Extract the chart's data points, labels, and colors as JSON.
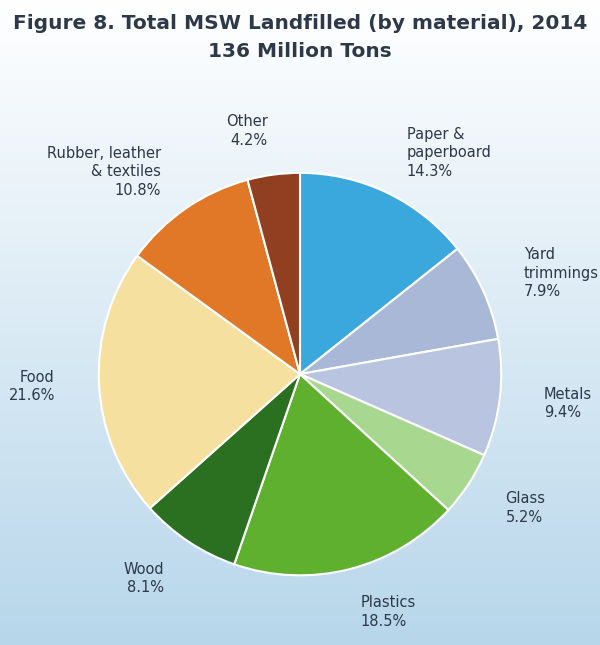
{
  "title_line1": "Figure 8. Total MSW Landfilled (by material), 2014",
  "title_line2": "136 Million Tons",
  "labels": [
    "Paper &\npaperboard\n14.3%",
    "Yard\ntrimmings\n7.9%",
    "Metals\n9.4%",
    "Glass\n5.2%",
    "Plastics\n18.5%",
    "Wood\n8.1%",
    "Food\n21.6%",
    "Rubber, leather\n& textiles\n10.8%",
    "Other\n4.2%"
  ],
  "values": [
    14.3,
    7.9,
    9.4,
    5.2,
    18.5,
    8.1,
    21.6,
    10.8,
    4.2
  ],
  "colors": [
    "#3AA8DC",
    "#AAB8D8",
    "#B8C4E0",
    "#A8D890",
    "#60B030",
    "#2A7020",
    "#F5E0A0",
    "#E07828",
    "#904020"
  ],
  "startangle": 90,
  "bg_top": "#ffffff",
  "bg_bottom": "#b0cce0",
  "title_fontsize": 14.5,
  "label_fontsize": 10.5,
  "title_color": "#2d3848",
  "label_color": "#2d3848",
  "edge_color": "white",
  "edge_width": 1.5
}
